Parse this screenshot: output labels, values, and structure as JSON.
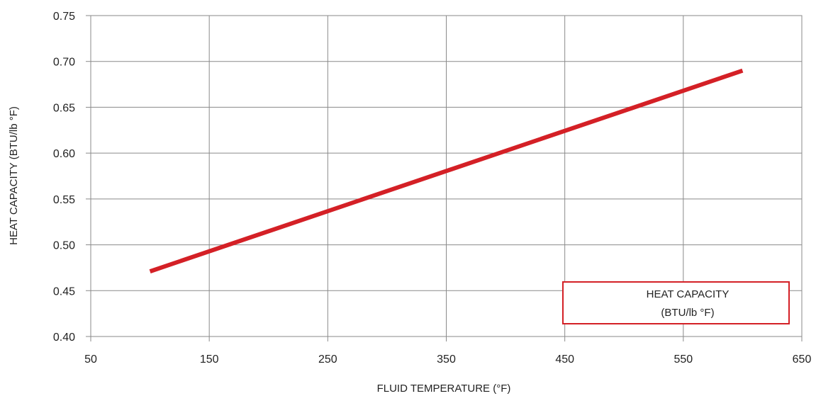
{
  "chart_data": {
    "type": "line",
    "xlabel": "FLUID TEMPERATURE (°F)",
    "ylabel": "HEAT CAPACITY (BTU/lb °F)",
    "xlim": [
      50,
      650
    ],
    "ylim": [
      0.4,
      0.75
    ],
    "x_ticks": [
      "50",
      "150",
      "250",
      "350",
      "450",
      "550",
      "650"
    ],
    "y_ticks": [
      "0.40",
      "0.45",
      "0.50",
      "0.55",
      "0.60",
      "0.65",
      "0.70",
      "0.75"
    ],
    "grid": true,
    "legend": {
      "position": "bottom-right",
      "line1": "HEAT CAPACITY",
      "line2": "(BTU/lb °F)"
    },
    "series": [
      {
        "name": "HEAT CAPACITY (BTU/lb °F)",
        "color": "#d42026",
        "x": [
          100,
          600
        ],
        "y": [
          0.471,
          0.69
        ]
      }
    ]
  }
}
